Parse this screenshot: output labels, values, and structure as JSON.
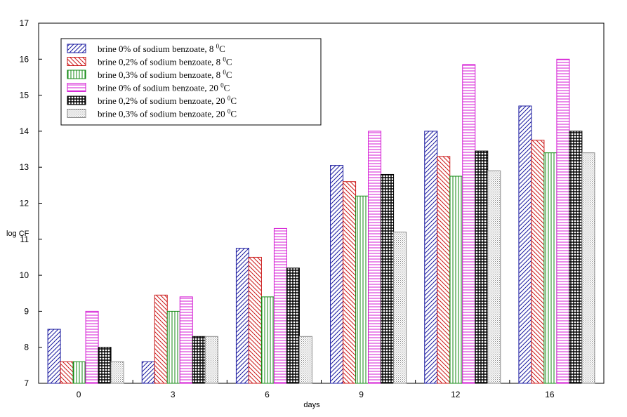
{
  "chart_data": {
    "type": "bar",
    "title": "",
    "xlabel": "days",
    "ylabel": "log CF",
    "ylim": [
      7,
      17
    ],
    "yticks": [
      "7",
      "8",
      "9",
      "10",
      "11",
      "12",
      "13",
      "14",
      "15",
      "16",
      "17"
    ],
    "categories": [
      "0",
      "3",
      "6",
      "9",
      "12",
      "16"
    ],
    "legend_position": "top-left",
    "series": [
      {
        "name": "brine 0% of sodium benzoate, 8",
        "values": [
          8.5,
          7.6,
          10.75,
          13.05,
          14.0,
          14.7
        ],
        "color": "#1a1aa0",
        "pattern": "diag-up"
      },
      {
        "name": "brine 0,2% of sodium benzoate, 8",
        "values": [
          7.6,
          9.45,
          10.5,
          12.6,
          13.3,
          13.75
        ],
        "color": "#cc1a1a",
        "pattern": "diag-down"
      },
      {
        "name": "brine 0,3% of sodium benzoate, 8",
        "values": [
          7.6,
          9.0,
          9.4,
          12.2,
          12.75,
          13.4
        ],
        "color": "#138a13",
        "pattern": "vertical"
      },
      {
        "name": "brine 0% of sodium benzoate, 20",
        "values": [
          9.0,
          9.4,
          11.3,
          14.0,
          15.85,
          16.0
        ],
        "color": "#d41ad4",
        "pattern": "horizontal"
      },
      {
        "name": "brine 0,2% of sodium benzoate, 20",
        "values": [
          8.0,
          8.3,
          10.2,
          12.8,
          13.45,
          14.0
        ],
        "color": "#000000",
        "pattern": "grid"
      },
      {
        "name": "brine 0,3% of sodium benzoate, 20",
        "values": [
          7.6,
          8.3,
          8.3,
          11.2,
          12.9,
          13.4
        ],
        "color": "#8a8a8a",
        "pattern": "dots"
      }
    ],
    "legend_unit_sup": "0",
    "legend_unit": "C"
  }
}
